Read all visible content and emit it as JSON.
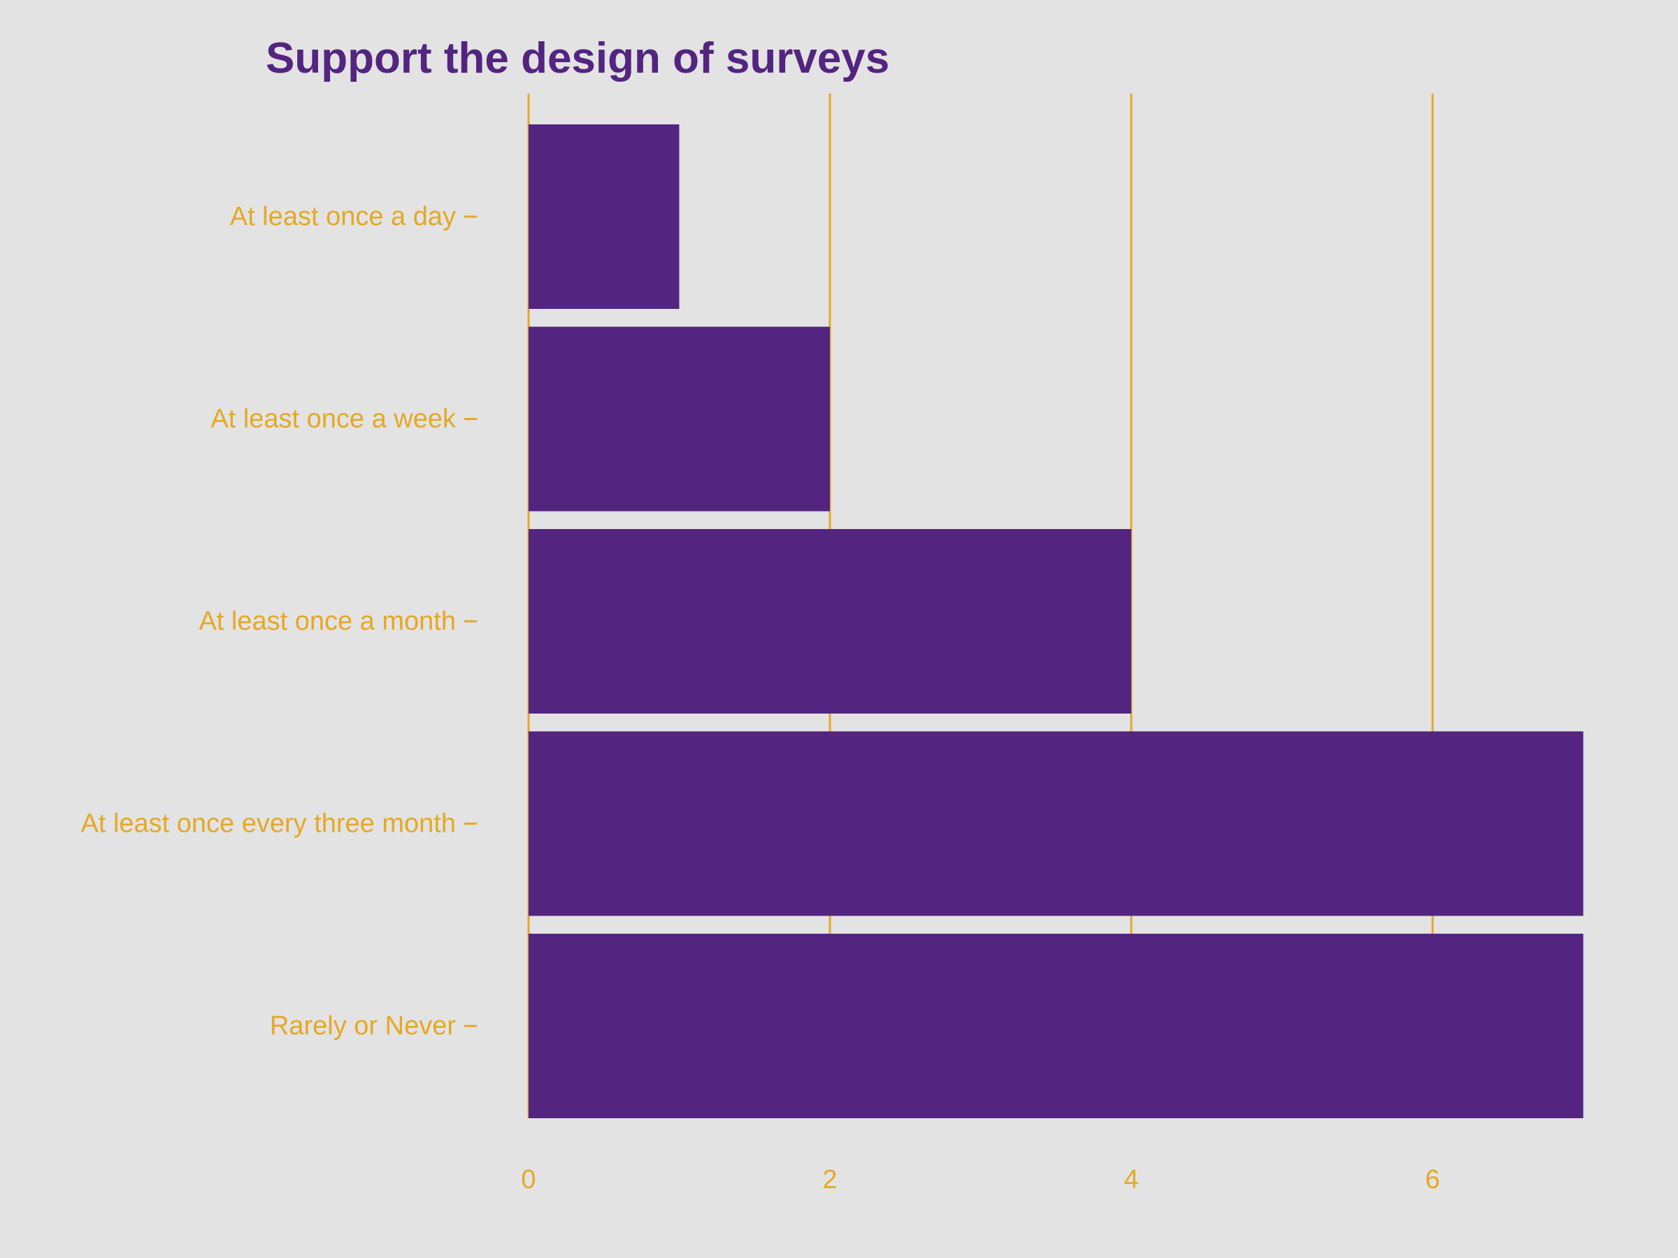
{
  "chart_data": {
    "type": "bar",
    "orientation": "horizontal",
    "title": "Support the design of surveys",
    "xlabel": "",
    "ylabel": "",
    "categories": [
      "At least once a day",
      "At least once a week",
      "At least once a month",
      "At least once every three month",
      "Rarely or Never"
    ],
    "values": [
      1,
      2,
      4,
      7,
      7
    ],
    "xlim": [
      0,
      7
    ],
    "x_ticks": [
      0,
      2,
      4,
      6
    ],
    "grid": {
      "vertical": true,
      "horizontal": false
    },
    "legend": "none"
  },
  "colors": {
    "background": "#e3e3e3",
    "bar": "#532480",
    "title": "#532480",
    "axis_text": "#e5a825",
    "grid": "#e5a825"
  }
}
